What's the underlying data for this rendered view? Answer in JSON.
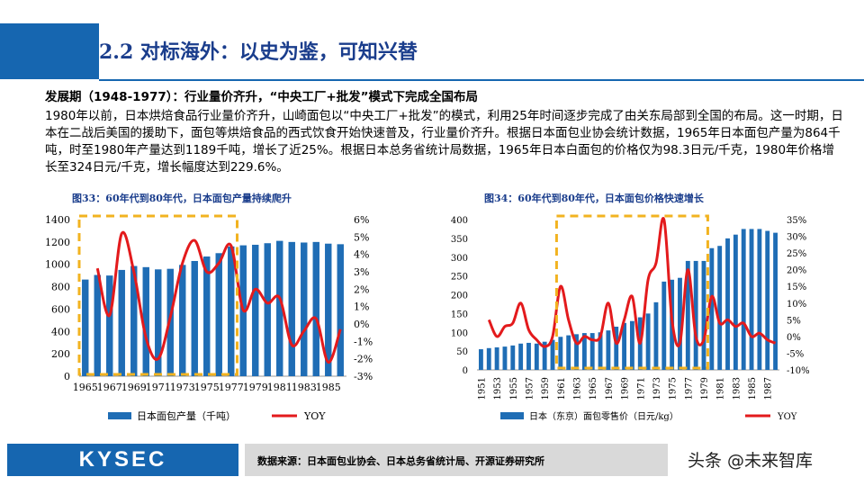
{
  "header": {
    "title": "2.2 对标海外：以史为鉴，可知兴替"
  },
  "section_heading": "发展期（1948-1977）：行业量价齐升，“中央工厂+批发”模式下完成全国布局",
  "paragraph": "1980年以前，日本烘焙食品行业量价齐升，山崎面包以“中央工厂+批发”的模式，利用25年时间逐步完成了由关东局部到全国的布局。这一时期，日本在二战后美国的援助下，面包等烘焙食品的西式饮食开始快速普及，行业量价齐升。根据日本面包业协会统计数据，1965年日本面包产量为864千吨，时至1980年产量达到1189千吨，增长了近25%。根据日本总务省统计局数据，1965年日本白面包的价格仅为98.3日元/千克，1980年价格增长至324日元/千克，增长幅度达到229.6%。",
  "footer": {
    "logo": "KYSEC",
    "source": "数据来源：日本面包业协会、日本总务省统计局、开源证券研究所",
    "watermark": "头条 @未来智库"
  },
  "colors": {
    "bar": "#1f6db5",
    "line": "#e31a1c",
    "highlight": "#f2b320",
    "brand": "#1666b0"
  },
  "chart_data": [
    {
      "type": "bar",
      "title": "图33：60年代到80年代，日本面包产量持续爬升",
      "categories": [
        "1965",
        "1966",
        "1967",
        "1968",
        "1969",
        "1970",
        "1971",
        "1972",
        "1973",
        "1974",
        "1975",
        "1976",
        "1977",
        "1978",
        "1979",
        "1980",
        "1981",
        "1982",
        "1983",
        "1984",
        "1985",
        "1986"
      ],
      "tick_labels": [
        "1965",
        "1967",
        "1969",
        "1971",
        "1973",
        "1975",
        "1977",
        "1979",
        "1981",
        "1983",
        "1985"
      ],
      "series": [
        {
          "name": "日本面包产量（千吨）",
          "axis": "left",
          "type": "bar",
          "values": [
            864,
            905,
            900,
            950,
            985,
            975,
            955,
            960,
            995,
            1030,
            1070,
            1100,
            1160,
            1170,
            1175,
            1189,
            1210,
            1200,
            1195,
            1200,
            1185,
            1180
          ]
        },
        {
          "name": "YOY",
          "axis": "right",
          "type": "line",
          "values": [
            null,
            3.2,
            0.5,
            5.2,
            3.0,
            -0.8,
            -2.0,
            0.4,
            3.5,
            4.8,
            3.0,
            3.5,
            4.5,
            0.8,
            2.0,
            1.2,
            1.5,
            -1.2,
            -0.4,
            0.3,
            -2.2,
            -0.3
          ]
        }
      ],
      "ylim_left": [
        0,
        1400
      ],
      "yticks_left": [
        0,
        200,
        400,
        600,
        800,
        1000,
        1200,
        1400
      ],
      "ylim_right": [
        -3,
        6
      ],
      "yticks_right": [
        "-3%",
        "-2%",
        "-1%",
        "0%",
        "1%",
        "2%",
        "3%",
        "4%",
        "5%",
        "6%"
      ],
      "legend_position": "bottom",
      "highlight_box": [
        "1965",
        "1977"
      ]
    },
    {
      "type": "bar",
      "title": "图34：60年代到80年代，日本面包价格快速增长",
      "categories": [
        "1951",
        "1952",
        "1953",
        "1954",
        "1955",
        "1956",
        "1957",
        "1958",
        "1959",
        "1960",
        "1961",
        "1962",
        "1963",
        "1964",
        "1965",
        "1966",
        "1967",
        "1968",
        "1969",
        "1970",
        "1971",
        "1972",
        "1973",
        "1974",
        "1975",
        "1976",
        "1977",
        "1978",
        "1979",
        "1980",
        "1981",
        "1982",
        "1983",
        "1984",
        "1985",
        "1986",
        "1987",
        "1988"
      ],
      "tick_labels": [
        "1951",
        "1953",
        "1955",
        "1957",
        "1959",
        "1961",
        "1963",
        "1965",
        "1967",
        "1969",
        "1971",
        "1973",
        "1975",
        "1977",
        "1979",
        "1981",
        "1983",
        "1985",
        "1987"
      ],
      "series": [
        {
          "name": "日本（东京）面包零售价（日元/kg）",
          "axis": "left",
          "type": "bar",
          "values": [
            55,
            58,
            60,
            62,
            65,
            70,
            72,
            70,
            75,
            80,
            88,
            92,
            95,
            98,
            98,
            100,
            105,
            115,
            125,
            130,
            140,
            150,
            180,
            235,
            240,
            245,
            290,
            290,
            290,
            324,
            330,
            350,
            360,
            375,
            375,
            375,
            370,
            365
          ]
        },
        {
          "name": "YOY",
          "axis": "right",
          "type": "line",
          "values": [
            null,
            5,
            0,
            3,
            4,
            10,
            2,
            -1,
            -3,
            0,
            15,
            5,
            -2,
            0,
            -1,
            0,
            10,
            -2,
            5,
            12,
            -2,
            17,
            22,
            35,
            5,
            -2,
            20,
            0,
            -1,
            12,
            4,
            5,
            3,
            4,
            0,
            1,
            -1,
            -2
          ]
        }
      ],
      "ylim_left": [
        0,
        400
      ],
      "yticks_left": [
        0,
        50,
        100,
        150,
        200,
        250,
        300,
        350,
        400
      ],
      "ylim_right": [
        -10,
        35
      ],
      "yticks_right": [
        "-10%",
        "-5%",
        "0%",
        "5%",
        "10%",
        "15%",
        "20%",
        "25%",
        "30%",
        "35%"
      ],
      "legend_position": "bottom",
      "highlight_box": [
        "1961",
        "1979"
      ]
    }
  ]
}
